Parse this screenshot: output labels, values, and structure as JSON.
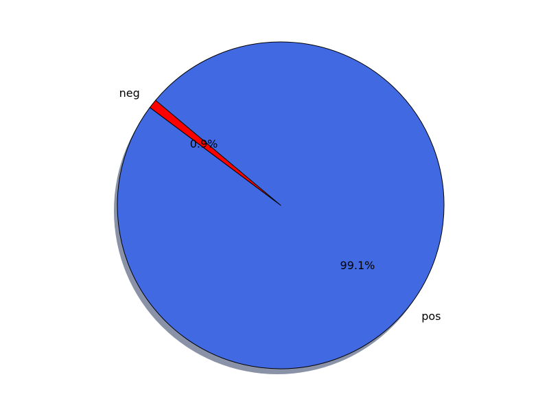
{
  "chart_data": {
    "type": "pie",
    "labels": [
      "neg",
      "pos"
    ],
    "values": [
      0.9,
      99.1
    ],
    "autopct_labels": [
      "0.9%",
      "99.1%"
    ],
    "colors": [
      "#ff0000",
      "#4169e1"
    ],
    "start_angle_deg": 140,
    "counterclock": true,
    "shadow": true,
    "shadow_color": "#8a92a8",
    "edge_color": "#000000",
    "title": ""
  }
}
